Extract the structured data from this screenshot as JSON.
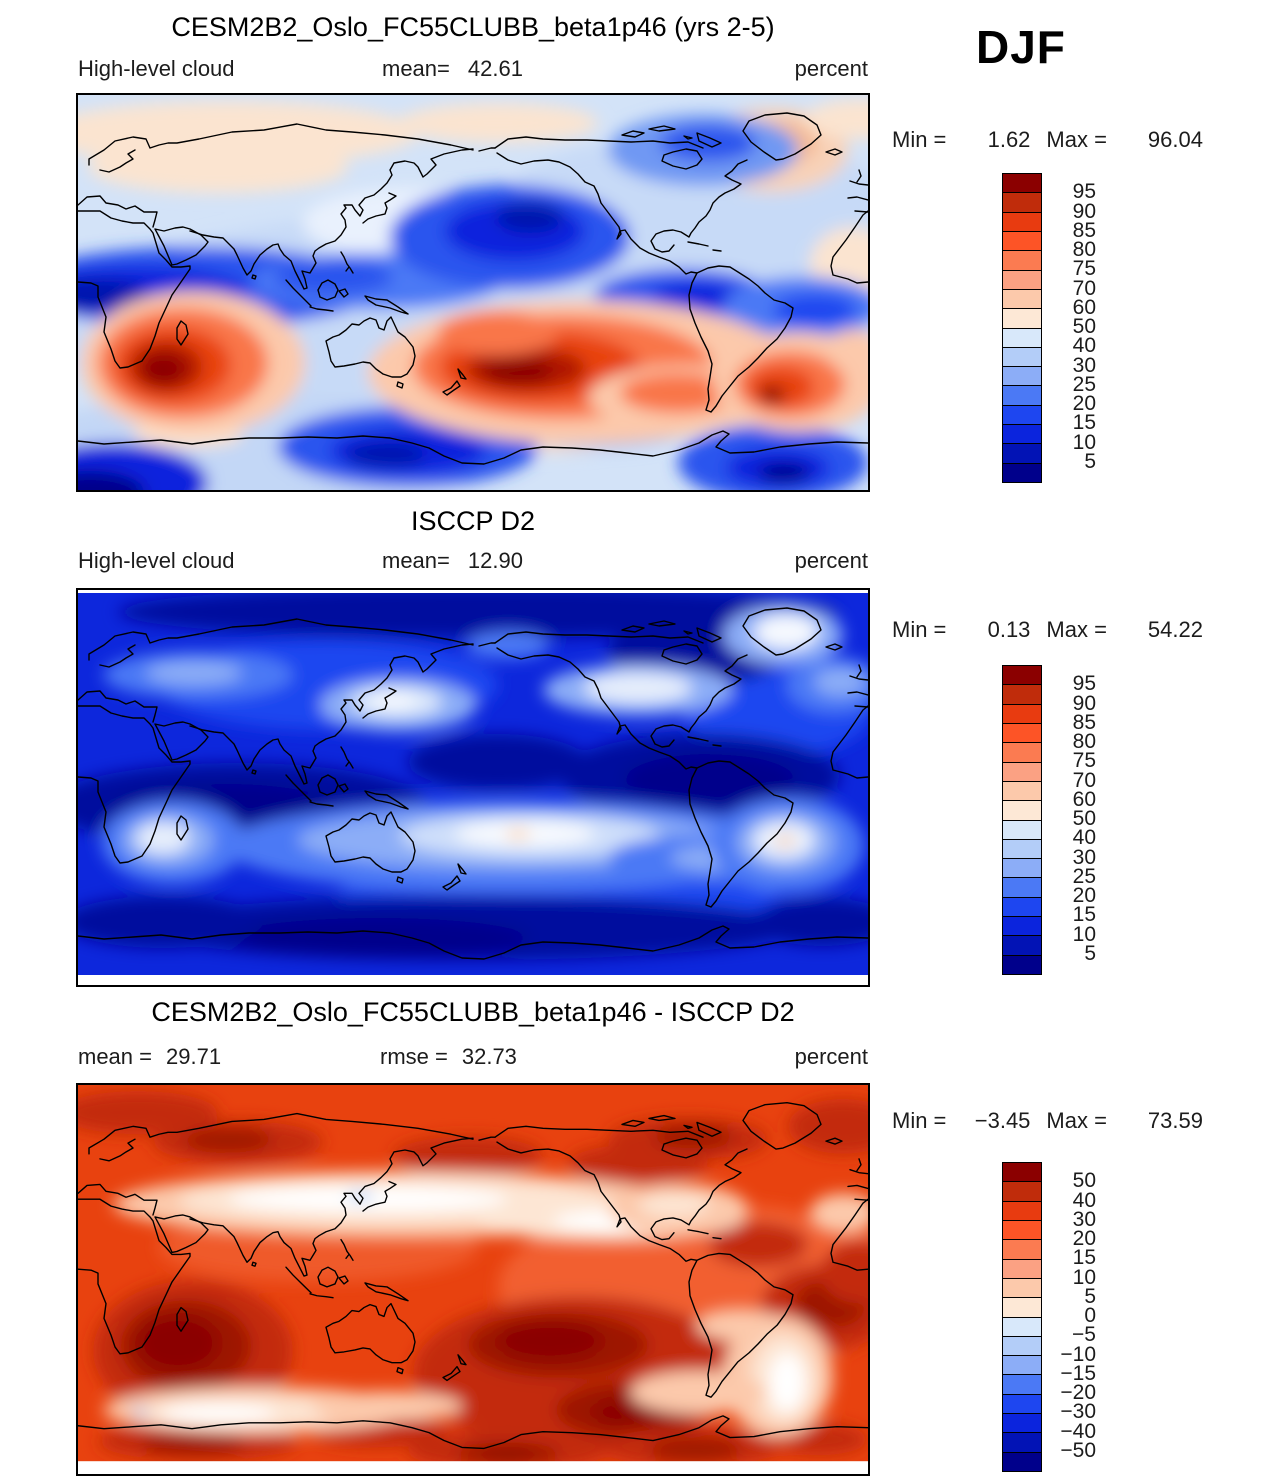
{
  "season_label": "DJF",
  "palette": [
    "#8b0000",
    "#c02c0b",
    "#e83b10",
    "#fd5426",
    "#fb7b51",
    "#fba183",
    "#fcc9ab",
    "#fde8d6",
    "#d8e8fa",
    "#b3cdf8",
    "#8cadf7",
    "#4b79f5",
    "#1e46f0",
    "#0b24dd",
    "#0213b5",
    "#00008b"
  ],
  "panels": {
    "model": {
      "title": "CESM2B2_Oslo_FC55CLUBB_beta1p46 (yrs 2-5)",
      "field_label": "High-level cloud",
      "mean_label": "mean=",
      "mean_value": "42.61",
      "units_label": "percent",
      "min_label": "Min =",
      "min_value": "1.62",
      "max_label": "Max =",
      "max_value": "96.04",
      "colorbar_labels": [
        "95",
        "90",
        "85",
        "80",
        "75",
        "70",
        "60",
        "50",
        "40",
        "30",
        "25",
        "20",
        "15",
        "10",
        "5"
      ]
    },
    "obs": {
      "title": "ISCCP D2",
      "field_label": "High-level cloud",
      "mean_label": "mean=",
      "mean_value": "12.90",
      "units_label": "percent",
      "min_label": "Min =",
      "min_value": "0.13",
      "max_label": "Max =",
      "max_value": "54.22",
      "colorbar_labels": [
        "95",
        "90",
        "85",
        "80",
        "75",
        "70",
        "60",
        "50",
        "40",
        "30",
        "25",
        "20",
        "15",
        "10",
        "5"
      ]
    },
    "diff": {
      "title": "CESM2B2_Oslo_FC55CLUBB_beta1p46 - ISCCP D2",
      "mean_label": "mean =",
      "mean_value": "29.71",
      "rmse_label": "rmse =",
      "rmse_value": "32.73",
      "units_label": "percent",
      "min_label": "Min =",
      "min_value": "−3.45",
      "max_label": "Max =",
      "max_value": "73.59",
      "colorbar_labels": [
        "50",
        "40",
        "30",
        "20",
        "15",
        "10",
        "5",
        "0",
        "−5",
        "−10",
        "−15",
        "−20",
        "−30",
        "−40",
        "−50"
      ]
    }
  },
  "chart_data": [
    {
      "type": "heatmap",
      "subtype": "filled-contour-global-map",
      "title": "CESM2B2_Oslo_FC55CLUBB_beta1p46 (yrs 2-5)",
      "variable": "High-level cloud",
      "units": "percent",
      "season": "DJF",
      "mean": 42.61,
      "min": 1.62,
      "max": 96.04,
      "contour_levels": [
        5,
        10,
        15,
        20,
        25,
        30,
        40,
        50,
        60,
        70,
        75,
        80,
        85,
        90,
        95
      ],
      "colormap": "16-class blue-white-red diverging",
      "projection": "cylindrical equidistant, lon 0-360, lat 90N-90S",
      "notable_features": "dark-blue subtropical bands; deep-red maxima over central Africa, Maritime Continent / tropical west Pacific and Amazonia; pale blue background"
    },
    {
      "type": "heatmap",
      "subtype": "filled-contour-global-map",
      "title": "ISCCP D2",
      "variable": "High-level cloud",
      "units": "percent",
      "season": "DJF",
      "mean": 12.9,
      "min": 0.13,
      "max": 54.22,
      "contour_levels": [
        5,
        10,
        15,
        20,
        25,
        30,
        40,
        50,
        60,
        70,
        75,
        80,
        85,
        90,
        95
      ],
      "colormap": "16-class blue-white-red diverging",
      "projection": "cylindrical equidistant, lon 0-360, lat 90N-90S",
      "notable_features": "mostly deep blue (<15%); near-white maxima over Maritime Continent, Amazonia, central Africa, Tibet, North Pacific and Greenland"
    },
    {
      "type": "heatmap",
      "subtype": "filled-contour-global-map-difference",
      "title": "CESM2B2_Oslo_FC55CLUBB_beta1p46 - ISCCP D2",
      "variable": "High-level cloud difference",
      "units": "percent",
      "season": "DJF",
      "mean": 29.71,
      "rmse": 32.73,
      "min": -3.45,
      "max": 73.59,
      "contour_levels": [
        -50,
        -40,
        -30,
        -20,
        -15,
        -10,
        -5,
        0,
        5,
        10,
        15,
        20,
        30,
        40,
        50
      ],
      "colormap": "16-class blue-white-red diverging",
      "projection": "cylindrical equidistant, lon 0-360, lat 90N-90S",
      "notable_features": "positive bias nearly everywhere (orange/red); dark-red maxima over Africa, Maritime Continent/Australia; near-zero white bands ~30-40N across Asia-Pacific and ~35S"
    }
  ]
}
